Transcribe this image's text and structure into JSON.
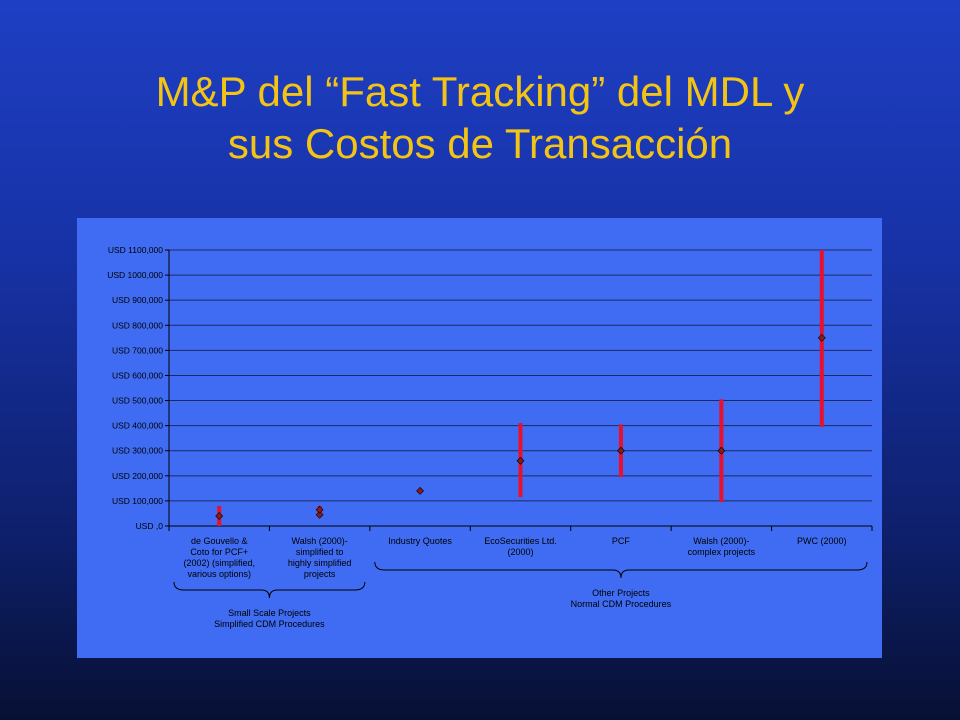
{
  "slide": {
    "title_line1": "M&P del “Fast Tracking” del MDL y",
    "title_line2": "sus Costos de Transacción",
    "title_color": "#f4c414"
  },
  "chart_data": {
    "type": "range",
    "ylim": [
      0,
      1100000
    ],
    "y_ticks": [
      {
        "value": 0,
        "label": "USD ,0"
      },
      {
        "value": 100000,
        "label": "USD 100,000"
      },
      {
        "value": 200000,
        "label": "USD 200,000"
      },
      {
        "value": 300000,
        "label": "USD 300,000"
      },
      {
        "value": 400000,
        "label": "USD 400,000"
      },
      {
        "value": 500000,
        "label": "USD 500,000"
      },
      {
        "value": 600000,
        "label": "USD 600,000"
      },
      {
        "value": 700000,
        "label": "USD 700,000"
      },
      {
        "value": 800000,
        "label": "USD 800,000"
      },
      {
        "value": 900000,
        "label": "USD 900,000"
      },
      {
        "value": 1000000,
        "label": "USD 1000,000"
      },
      {
        "value": 1100000,
        "label": "USD 1100,000"
      }
    ],
    "categories": [
      {
        "lines": [
          "de Gouvello &",
          "Coto for PCF+",
          "(2002) (simplified,",
          "various options)"
        ],
        "min": 0,
        "max": 80000,
        "points": [
          40000
        ]
      },
      {
        "lines": [
          "Walsh (2000)-",
          "simplified to",
          "highly simplified",
          "projects"
        ],
        "min": 35000,
        "max": 80000,
        "points": [
          45000,
          65000
        ]
      },
      {
        "lines": [
          "Industry Quotes"
        ],
        "min": null,
        "max": null,
        "points": [
          140000
        ]
      },
      {
        "lines": [
          "EcoSecurities Ltd.",
          "(2000)"
        ],
        "min": 115000,
        "max": 410000,
        "points": [
          260000
        ]
      },
      {
        "lines": [
          "PCF"
        ],
        "min": 195000,
        "max": 405000,
        "points": [
          300000
        ]
      },
      {
        "lines": [
          "Walsh (2000)-",
          "complex projects"
        ],
        "min": 95000,
        "max": 505000,
        "points": [
          300000
        ]
      },
      {
        "lines": [
          "PWC (2000)"
        ],
        "min": 395000,
        "max": 1100000,
        "points": [
          750000
        ]
      }
    ],
    "groups": [
      {
        "from": 0,
        "to": 1,
        "lines": [
          "Small Scale Projects",
          "Simplified CDM Procedures"
        ]
      },
      {
        "from": 2,
        "to": 6,
        "lines": [
          "Other Projects",
          "Normal CDM Procedures"
        ]
      }
    ],
    "colors": {
      "panel": "#3f6cf2",
      "range_bar": "#e8102a",
      "marker": "#8b1a1a",
      "axis": "#000000",
      "gridline": "#1a2a66"
    },
    "grid": true
  }
}
